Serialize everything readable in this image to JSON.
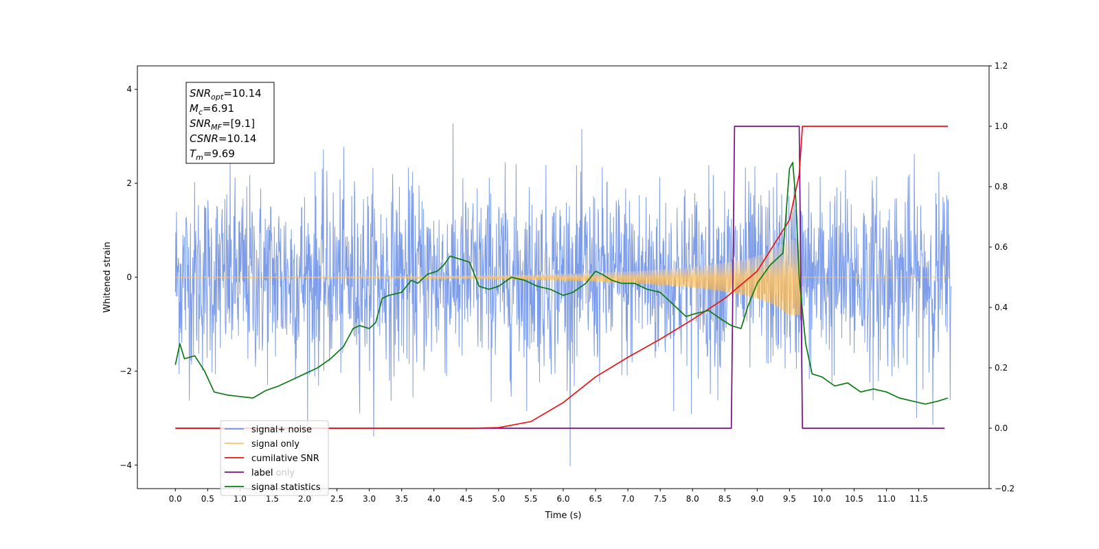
{
  "chart_data": {
    "type": "line",
    "xlabel": "Time (s)",
    "ylabel": "Whitened strain",
    "xlim": [
      -0.5875,
      12.5875
    ],
    "ylim": [
      -4.5,
      4.5
    ],
    "y2lim": [
      -0.2,
      1.2
    ],
    "x_ticks": [
      "0.0",
      "0.5",
      "1.0",
      "1.5",
      "2.0",
      "2.5",
      "3.0",
      "3.5",
      "4.0",
      "4.5",
      "5.0",
      "5.5",
      "6.0",
      "6.5",
      "7.0",
      "7.5",
      "8.0",
      "8.5",
      "9.0",
      "9.5",
      "10.0",
      "10.5",
      "11.0",
      "11.5"
    ],
    "y_ticks": [
      "−4",
      "−2",
      "0",
      "2",
      "4"
    ],
    "y2_ticks": [
      "−0.2",
      "0.0",
      "0.2",
      "0.4",
      "0.6",
      "0.8",
      "1.0",
      "1.2"
    ],
    "annotation": {
      "lines": [
        {
          "sym": "SNR",
          "sub": "opt",
          "rest": "=10.14"
        },
        {
          "sym": "M",
          "sub": "c",
          "rest": "=6.91"
        },
        {
          "sym": "SNR",
          "sub": "MF",
          "rest": "=[9.1]"
        },
        {
          "sym": "CSNR",
          "sub": "",
          "rest": "=10.14"
        },
        {
          "sym": "T",
          "sub": "m",
          "rest": "=9.69"
        }
      ]
    },
    "legend": {
      "placement": "lower-left",
      "entries": [
        {
          "label": "signal+ noise",
          "color": "#7092e6"
        },
        {
          "label": "signal only",
          "color": "#fcc46c"
        },
        {
          "label": "cumilative SNR",
          "color": "#ee1111"
        },
        {
          "label": "label",
          "color": "#7a0d83"
        },
        {
          "label": "signal statistics",
          "color": "#0b7a13"
        }
      ]
    },
    "hidden_label": "label only",
    "series": [
      {
        "name": "signal+ noise",
        "axis": "left",
        "color": "#7092e6",
        "sigma": 1.0,
        "t_start": 0.0,
        "t_end": 12.0
      },
      {
        "name": "signal only",
        "axis": "left",
        "color": "#fcc46c",
        "peak_time": 9.65,
        "peak_amp": 0.8
      },
      {
        "name": "cumilative SNR",
        "axis": "right",
        "color": "#ee1111",
        "x": [
          0.0,
          4.6,
          5.0,
          5.5,
          6.0,
          6.5,
          7.0,
          7.5,
          8.0,
          8.5,
          9.0,
          9.5,
          9.65,
          9.7,
          11.95
        ],
        "y": [
          0.0,
          0.0,
          0.002,
          0.022,
          0.085,
          0.17,
          0.235,
          0.295,
          0.36,
          0.43,
          0.52,
          0.69,
          0.84,
          1.0,
          1.0
        ]
      },
      {
        "name": "label",
        "axis": "right",
        "color": "#7a0d83",
        "x": [
          0.0,
          8.6,
          8.65,
          9.65,
          9.7,
          11.9
        ],
        "y": [
          0.0,
          0.0,
          1.0,
          1.0,
          0.0,
          0.0
        ]
      },
      {
        "name": "signal statistics",
        "axis": "right",
        "color": "#0b7a13",
        "x": [
          0.0,
          0.07,
          0.14,
          0.3,
          0.45,
          0.6,
          0.8,
          1.0,
          1.2,
          1.4,
          1.6,
          1.8,
          2.0,
          2.2,
          2.4,
          2.6,
          2.75,
          2.85,
          3.0,
          3.1,
          3.2,
          3.3,
          3.5,
          3.65,
          3.75,
          3.9,
          4.05,
          4.15,
          4.25,
          4.4,
          4.55,
          4.7,
          4.85,
          5.0,
          5.2,
          5.4,
          5.6,
          5.8,
          6.0,
          6.15,
          6.35,
          6.5,
          6.6,
          6.75,
          6.9,
          7.1,
          7.3,
          7.5,
          7.7,
          7.9,
          8.05,
          8.25,
          8.45,
          8.6,
          8.75,
          8.85,
          9.0,
          9.2,
          9.4,
          9.5,
          9.55,
          9.6,
          9.65,
          9.75,
          9.85,
          10.0,
          10.2,
          10.4,
          10.6,
          10.8,
          11.0,
          11.2,
          11.4,
          11.6,
          11.8,
          11.95
        ],
        "y": [
          0.21,
          0.28,
          0.23,
          0.24,
          0.19,
          0.12,
          0.11,
          0.105,
          0.1,
          0.125,
          0.14,
          0.16,
          0.18,
          0.2,
          0.23,
          0.27,
          0.33,
          0.34,
          0.33,
          0.35,
          0.43,
          0.44,
          0.45,
          0.49,
          0.48,
          0.51,
          0.52,
          0.54,
          0.57,
          0.56,
          0.55,
          0.47,
          0.46,
          0.47,
          0.5,
          0.49,
          0.47,
          0.46,
          0.44,
          0.45,
          0.48,
          0.52,
          0.51,
          0.49,
          0.48,
          0.48,
          0.46,
          0.45,
          0.41,
          0.37,
          0.38,
          0.39,
          0.36,
          0.34,
          0.33,
          0.4,
          0.48,
          0.54,
          0.58,
          0.86,
          0.88,
          0.75,
          0.5,
          0.28,
          0.18,
          0.17,
          0.14,
          0.15,
          0.12,
          0.13,
          0.12,
          0.1,
          0.09,
          0.08,
          0.09,
          0.1
        ]
      }
    ]
  }
}
